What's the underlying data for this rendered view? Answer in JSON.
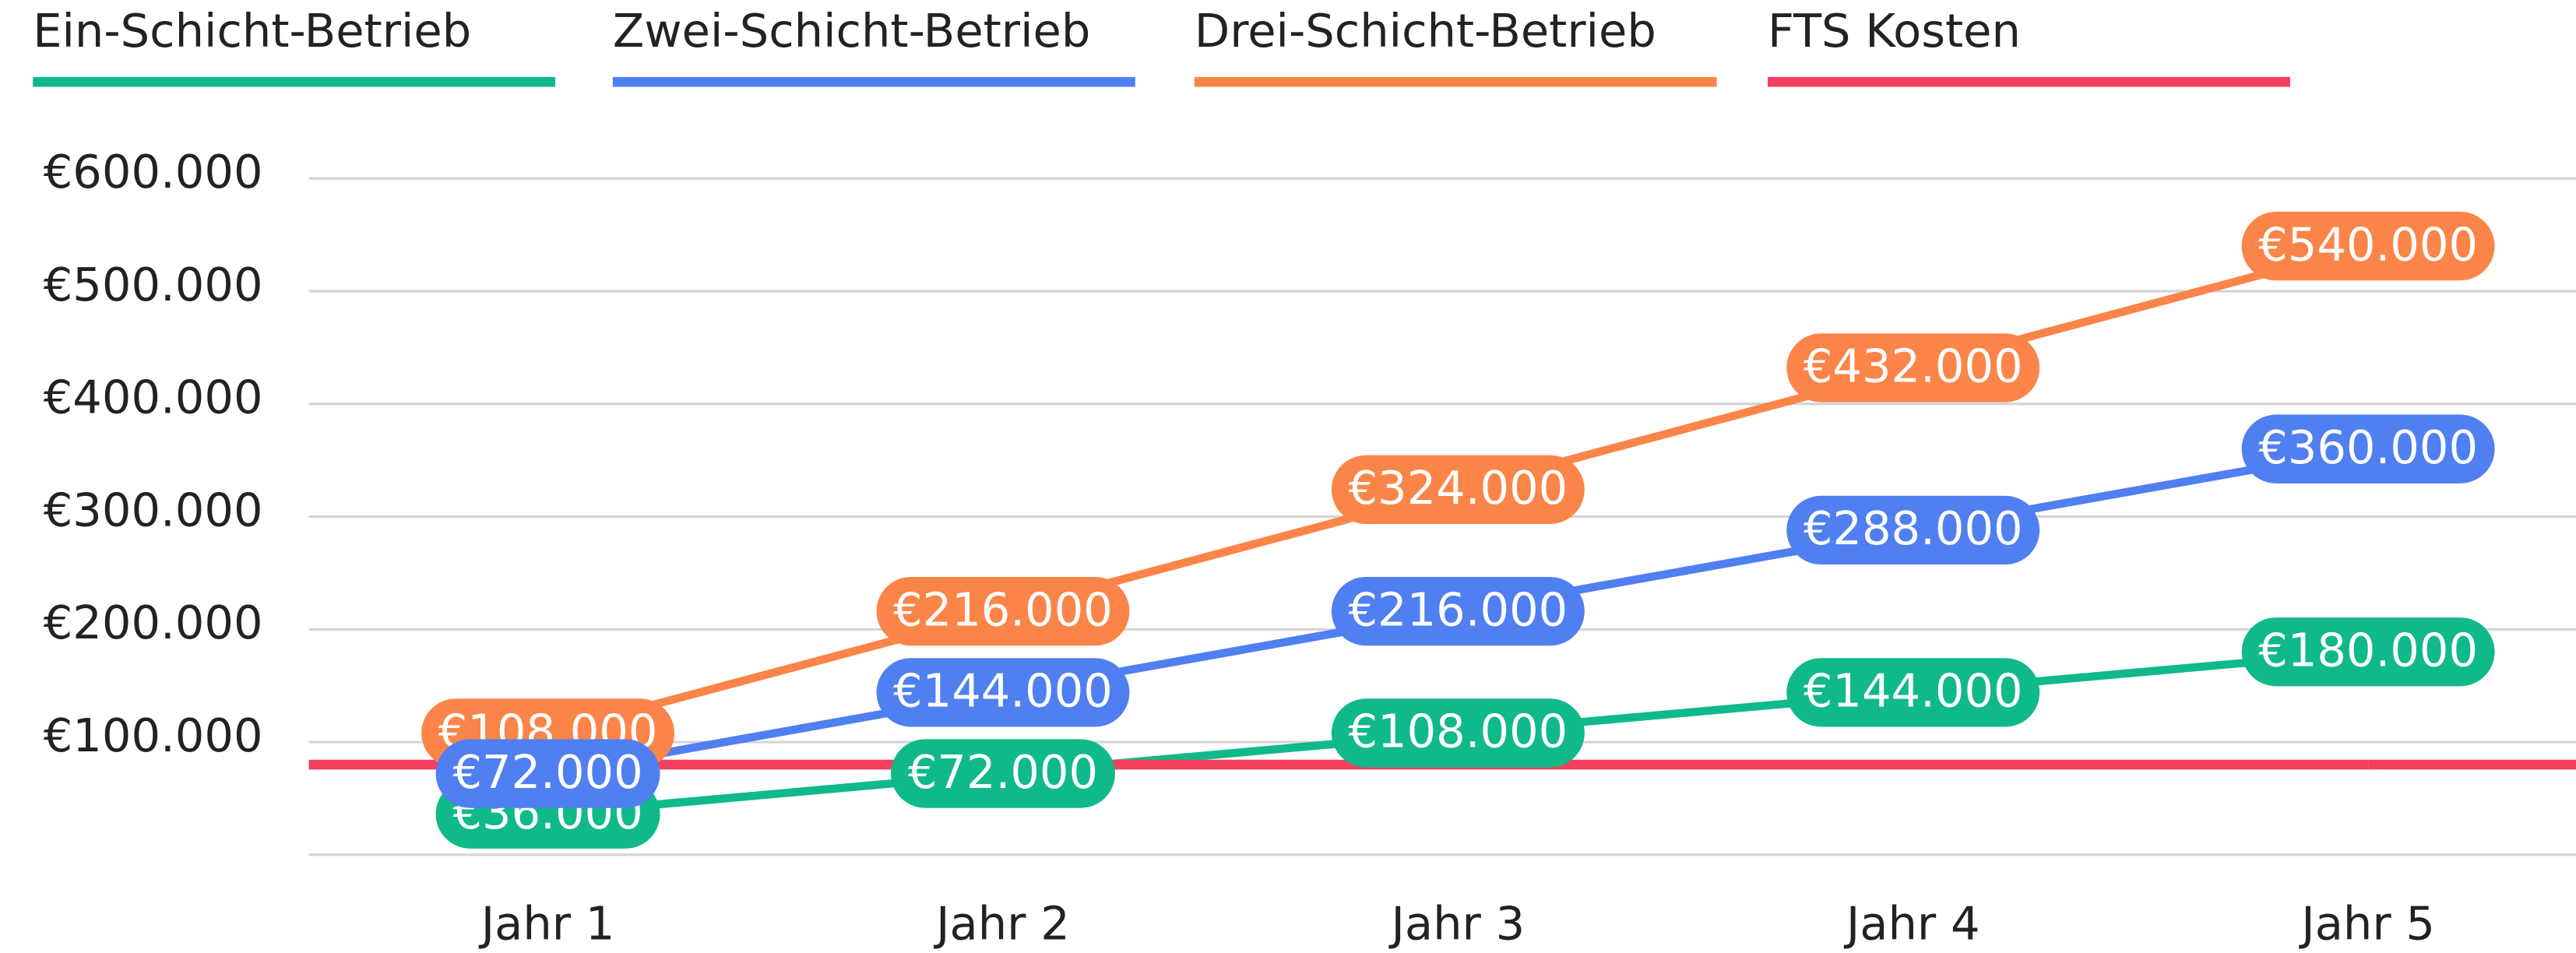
{
  "chart_data": {
    "type": "line",
    "categories": [
      "Jahr 1",
      "Jahr 2",
      "Jahr 3",
      "Jahr 4",
      "Jahr 5"
    ],
    "series": [
      {
        "name": "Ein-Schicht-Betrieb",
        "color": "#10b98a",
        "values": [
          36000,
          72000,
          108000,
          144000,
          180000
        ],
        "value_labels": [
          "€36.000",
          "€72.000",
          "€108.000",
          "€144.000",
          "€180.000"
        ]
      },
      {
        "name": "Zwei-Schicht-Betrieb",
        "color": "#4f7ff0",
        "values": [
          72000,
          144000,
          216000,
          288000,
          360000
        ],
        "value_labels": [
          "€72.000",
          "€144.000",
          "€216.000",
          "€288.000",
          "€360.000"
        ]
      },
      {
        "name": "Drei-Schicht-Betrieb",
        "color": "#fb8548",
        "values": [
          108000,
          216000,
          324000,
          432000,
          540000
        ],
        "value_labels": [
          "€108.000",
          "€216.000",
          "€324.000",
          "€432.000",
          "€540.000"
        ]
      },
      {
        "name": "FTS Kosten",
        "color": "#f43f5e",
        "values": [
          80000,
          80000,
          80000,
          80000,
          80000
        ]
      }
    ],
    "ylim": [
      0,
      600000
    ],
    "yticks": [
      {
        "value": 100000,
        "label": "€100.000"
      },
      {
        "value": 200000,
        "label": "€200.000"
      },
      {
        "value": 300000,
        "label": "€300.000"
      },
      {
        "value": 400000,
        "label": "€400.000"
      },
      {
        "value": 500000,
        "label": "€500.000"
      },
      {
        "value": 600000,
        "label": "€600.000"
      }
    ],
    "grid": true,
    "legend": "top"
  }
}
